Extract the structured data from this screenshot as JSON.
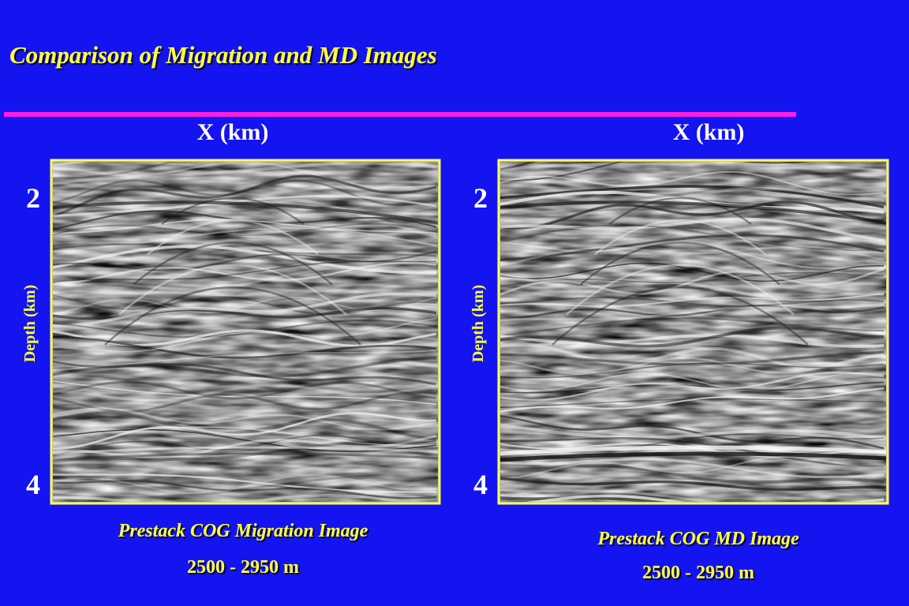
{
  "title": "Comparison of Migration and MD Images",
  "panels": [
    {
      "x_label": "X (km)",
      "y_label": "Depth (km)",
      "y_tick_labels": [
        "2",
        "4"
      ],
      "caption": "Prestack COG Migration Image",
      "range": "2500 - 2950 m"
    },
    {
      "x_label": "X (km)",
      "y_label": "Depth (km)",
      "y_tick_labels": [
        "2",
        "4"
      ],
      "caption": "Prestack COG MD Image",
      "range": "2500 - 2950 m"
    }
  ]
}
